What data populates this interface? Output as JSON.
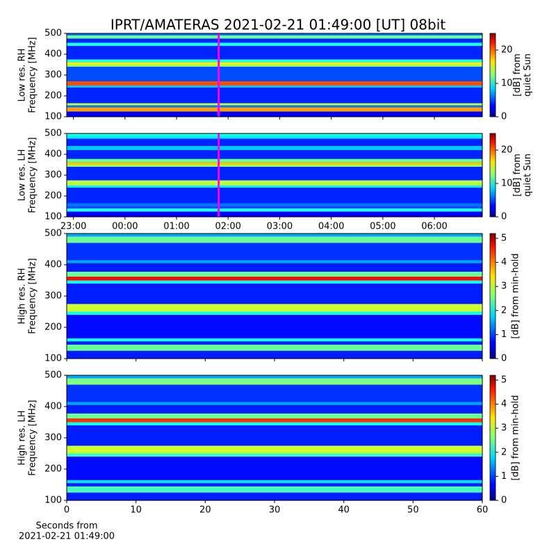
{
  "title": "IPRT/AMATERAS 2021-02-21 01:49:00 [UT]   08bit",
  "chart_data": [
    {
      "type": "heatmap",
      "ylabel": [
        "Low res. RH",
        "Frequency [MHz]"
      ],
      "ylim": [
        100,
        500
      ],
      "yticks": [
        100,
        200,
        300,
        400,
        500
      ],
      "xlim": [
        -1.13,
        6.93
      ],
      "xticks": [
        {
          "value": -1,
          "label": "23:00"
        },
        {
          "value": 0,
          "label": "00:00"
        },
        {
          "value": 1,
          "label": "01:00"
        },
        {
          "value": 2,
          "label": "02:00"
        },
        {
          "value": 3,
          "label": "03:00"
        },
        {
          "value": 4,
          "label": "04:00"
        },
        {
          "value": 5,
          "label": "05:00"
        },
        {
          "value": 6,
          "label": "06:00"
        }
      ],
      "show_xticklabels": false,
      "marker_x": 1.817,
      "marker_color": "#ff00ff",
      "freq_edges": [
        100,
        125,
        145,
        155,
        165,
        240,
        250,
        270,
        340,
        350,
        362,
        375,
        440,
        455,
        475,
        490,
        500
      ],
      "values": [
        3,
        18,
        6,
        14,
        4,
        8,
        20,
        5,
        13,
        16,
        10,
        4,
        10,
        4,
        12,
        6
      ],
      "clim": [
        0,
        25
      ],
      "cticks": [
        0,
        10,
        20
      ],
      "colorbar_label": [
        "[dB] from",
        "quiet Sun"
      ]
    },
    {
      "type": "heatmap",
      "ylabel": [
        "Low res. LH",
        "Frequency [MHz]"
      ],
      "ylim": [
        100,
        500
      ],
      "yticks": [
        100,
        200,
        300,
        400,
        500
      ],
      "xlim": [
        -1.13,
        6.93
      ],
      "xticks": [
        {
          "value": -1,
          "label": "23:00"
        },
        {
          "value": 0,
          "label": "00:00"
        },
        {
          "value": 1,
          "label": "01:00"
        },
        {
          "value": 2,
          "label": "02:00"
        },
        {
          "value": 3,
          "label": "03:00"
        },
        {
          "value": 4,
          "label": "04:00"
        },
        {
          "value": 5,
          "label": "05:00"
        },
        {
          "value": 6,
          "label": "06:00"
        }
      ],
      "show_xticklabels": true,
      "marker_x": 1.817,
      "marker_color": "#ff00ff",
      "freq_edges": [
        100,
        125,
        140,
        150,
        165,
        240,
        250,
        275,
        340,
        350,
        362,
        378,
        420,
        440,
        475,
        490,
        500
      ],
      "values": [
        3,
        10,
        5,
        6,
        4,
        9,
        14,
        4,
        13,
        17,
        12,
        4,
        8,
        4,
        9,
        10
      ],
      "clim": [
        0,
        25
      ],
      "cticks": [
        0,
        10,
        20
      ],
      "colorbar_label": [
        "[dB] from",
        "quiet Sun"
      ]
    },
    {
      "type": "heatmap",
      "ylabel": [
        "High res. RH",
        "Frequency [MHz]"
      ],
      "ylim": [
        100,
        500
      ],
      "yticks": [
        100,
        200,
        300,
        400,
        500
      ],
      "xlim": [
        0,
        60
      ],
      "xticks": [
        0,
        10,
        20,
        30,
        40,
        50,
        60
      ],
      "show_xticklabels": false,
      "freq_edges": [
        100,
        125,
        145,
        155,
        165,
        240,
        250,
        275,
        340,
        350,
        362,
        378,
        405,
        415,
        470,
        490,
        500
      ],
      "values": [
        0.8,
        2.5,
        0.8,
        2,
        0.7,
        2,
        3,
        0.8,
        2,
        4.5,
        2.5,
        0.8,
        1.5,
        0.9,
        2.5,
        1.5
      ],
      "clim": [
        0,
        5.2
      ],
      "cticks": [
        0,
        1,
        2,
        3,
        4,
        5
      ],
      "colorbar_label": [
        "[dB] from min-hold"
      ]
    },
    {
      "type": "heatmap",
      "ylabel": [
        "High res. LH",
        "Frequency [MHz]"
      ],
      "ylim": [
        100,
        500
      ],
      "yticks": [
        100,
        200,
        300,
        400,
        500
      ],
      "xlim": [
        0,
        60
      ],
      "xticks": [
        0,
        10,
        20,
        30,
        40,
        50,
        60
      ],
      "show_xticklabels": true,
      "xlabel": [
        "Seconds from",
        "2021-02-21 01:49:00"
      ],
      "freq_edges": [
        100,
        125,
        145,
        155,
        165,
        240,
        250,
        275,
        340,
        350,
        362,
        378,
        405,
        415,
        470,
        490,
        500
      ],
      "values": [
        0.8,
        2.3,
        0.8,
        1.8,
        0.7,
        2.2,
        3,
        0.8,
        2,
        4.3,
        2.5,
        0.8,
        1.5,
        0.9,
        2.6,
        1.5
      ],
      "clim": [
        0,
        5.2
      ],
      "cticks": [
        0,
        1,
        2,
        3,
        4,
        5
      ],
      "colorbar_label": [
        "[dB] from min-hold"
      ]
    }
  ]
}
